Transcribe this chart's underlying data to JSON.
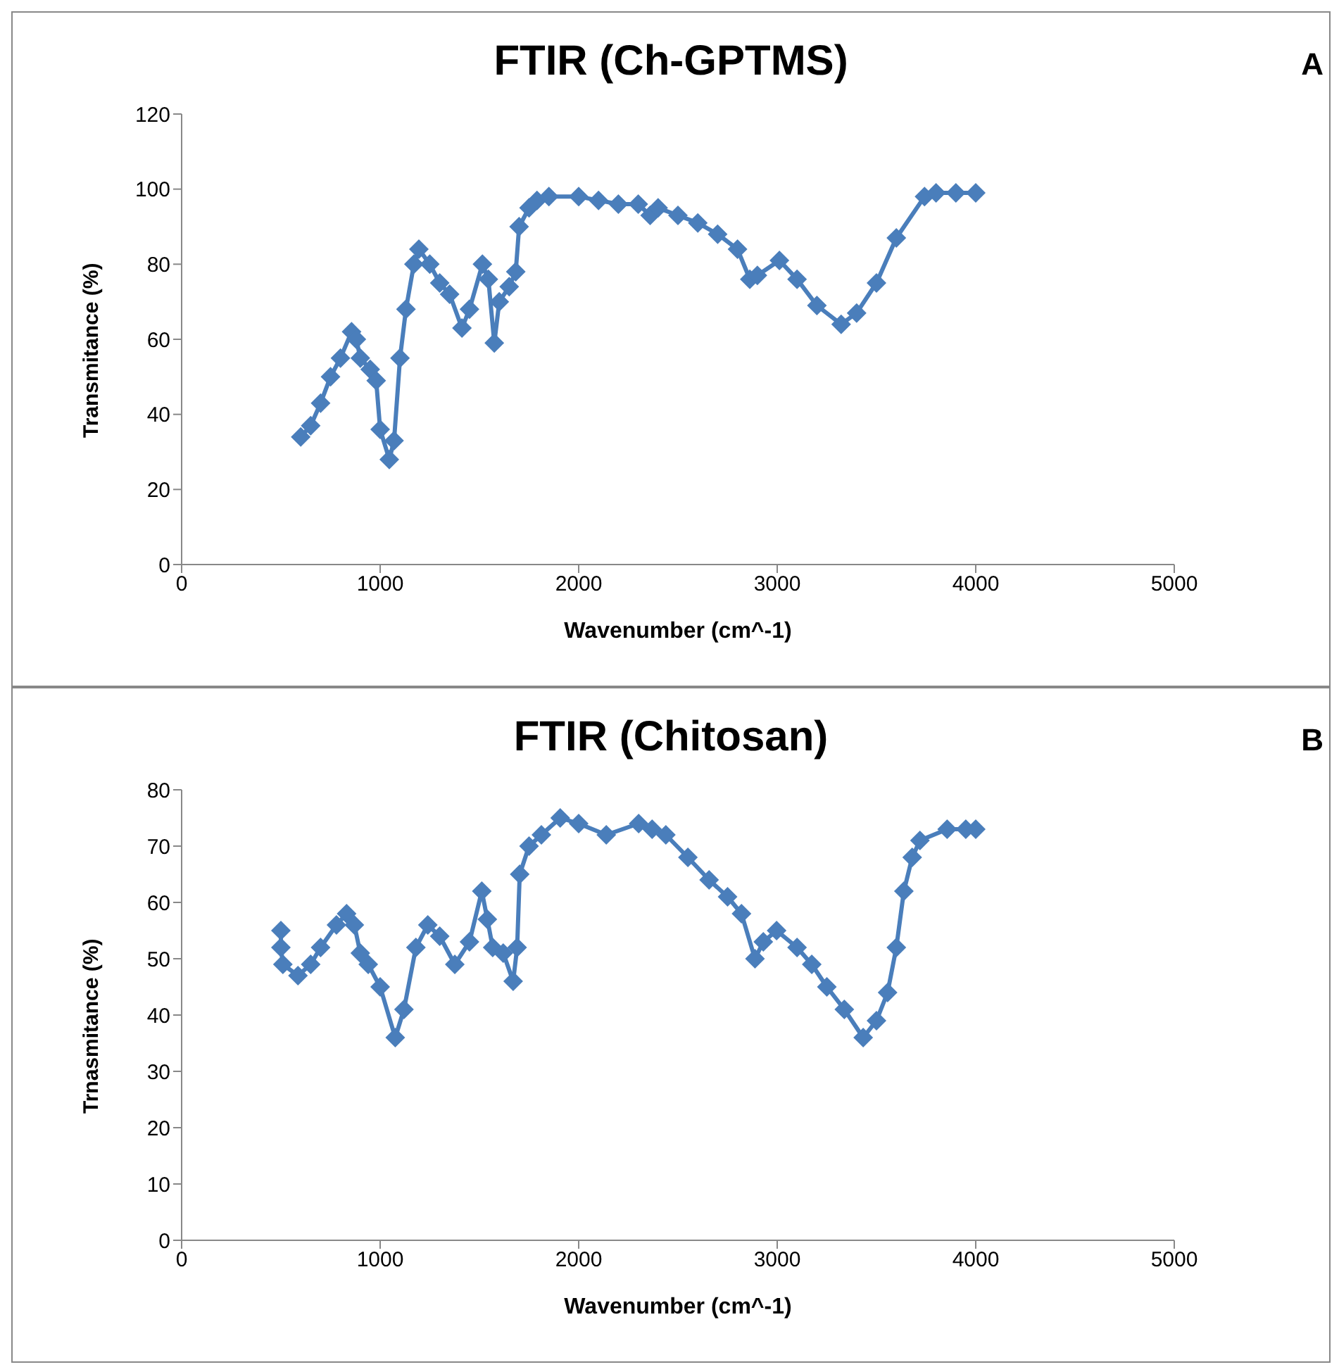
{
  "chart_data": [
    {
      "type": "line",
      "title": "FTIR (Ch-GPTMS)",
      "xlabel": "Wavenumber (cm^-1)",
      "ylabel": "Transmitance (%)",
      "annotations": [
        "A"
      ],
      "marker": "diamond",
      "xlim": [
        0,
        5000
      ],
      "xticks": [
        0,
        1000,
        2000,
        3000,
        4000,
        5000
      ],
      "ylim": [
        0,
        120
      ],
      "yticks": [
        0,
        20,
        40,
        60,
        80,
        100,
        120
      ],
      "series": [
        {
          "color": "#4a7ebb",
          "x": [
            600,
            650,
            700,
            750,
            800,
            856,
            880,
            900,
            950,
            980,
            1000,
            1046,
            1070,
            1100,
            1130,
            1170,
            1195,
            1250,
            1300,
            1350,
            1412,
            1450,
            1515,
            1545,
            1575,
            1600,
            1650,
            1683,
            1700,
            1750,
            1790,
            1850,
            2000,
            2100,
            2200,
            2300,
            2360,
            2400,
            2500,
            2600,
            2700,
            2800,
            2862,
            2900,
            3011,
            3100,
            3200,
            3322,
            3400,
            3500,
            3600,
            3742,
            3800,
            3900,
            4000
          ],
          "values": [
            34,
            37,
            43,
            50,
            55,
            62,
            60,
            55,
            52,
            49,
            36,
            28,
            33,
            55,
            68,
            80,
            84,
            80,
            75,
            72,
            63,
            68,
            80,
            76,
            59,
            70,
            74,
            78,
            90,
            95,
            97,
            98,
            98,
            97,
            96,
            96,
            93,
            95,
            93,
            91,
            88,
            84,
            76,
            77,
            81,
            76,
            69,
            64,
            67,
            75,
            87,
            98,
            99,
            99,
            99
          ]
        }
      ]
    },
    {
      "type": "line",
      "title": "FTIR (Chitosan)",
      "xlabel": "Wavenumber (cm^-1)",
      "ylabel": "Trnasmitance (%)",
      "annotations": [
        "B"
      ],
      "marker": "diamond",
      "xlim": [
        0,
        5000
      ],
      "xticks": [
        0,
        1000,
        2000,
        3000,
        4000,
        5000
      ],
      "ylim": [
        0,
        80
      ],
      "yticks": [
        0,
        10,
        20,
        30,
        40,
        50,
        60,
        70,
        80
      ],
      "series": [
        {
          "color": "#4a7ebb",
          "x": [
            500,
            500,
            510,
            586,
            650,
            700,
            780,
            831,
            870,
            900,
            940,
            1000,
            1076,
            1120,
            1180,
            1240,
            1300,
            1376,
            1450,
            1512,
            1540,
            1567,
            1620,
            1670,
            1690,
            1703,
            1750,
            1812,
            1907,
            2000,
            2139,
            2302,
            2370,
            2439,
            2550,
            2657,
            2750,
            2820,
            2888,
            2930,
            2997,
            3100,
            3174,
            3250,
            3338,
            3433,
            3500,
            3556,
            3600,
            3638,
            3680,
            3719,
            3856,
            3950,
            4000
          ],
          "values": [
            55,
            52,
            49,
            47,
            49,
            52,
            56,
            58,
            56,
            51,
            49,
            45,
            36,
            41,
            52,
            56,
            54,
            49,
            53,
            62,
            57,
            52,
            51,
            46,
            52,
            65,
            70,
            72,
            75,
            74,
            72,
            74,
            73,
            72,
            68,
            64,
            61,
            58,
            50,
            53,
            55,
            52,
            49,
            45,
            41,
            36,
            39,
            44,
            52,
            62,
            68,
            71,
            73,
            73,
            73
          ]
        }
      ]
    }
  ]
}
